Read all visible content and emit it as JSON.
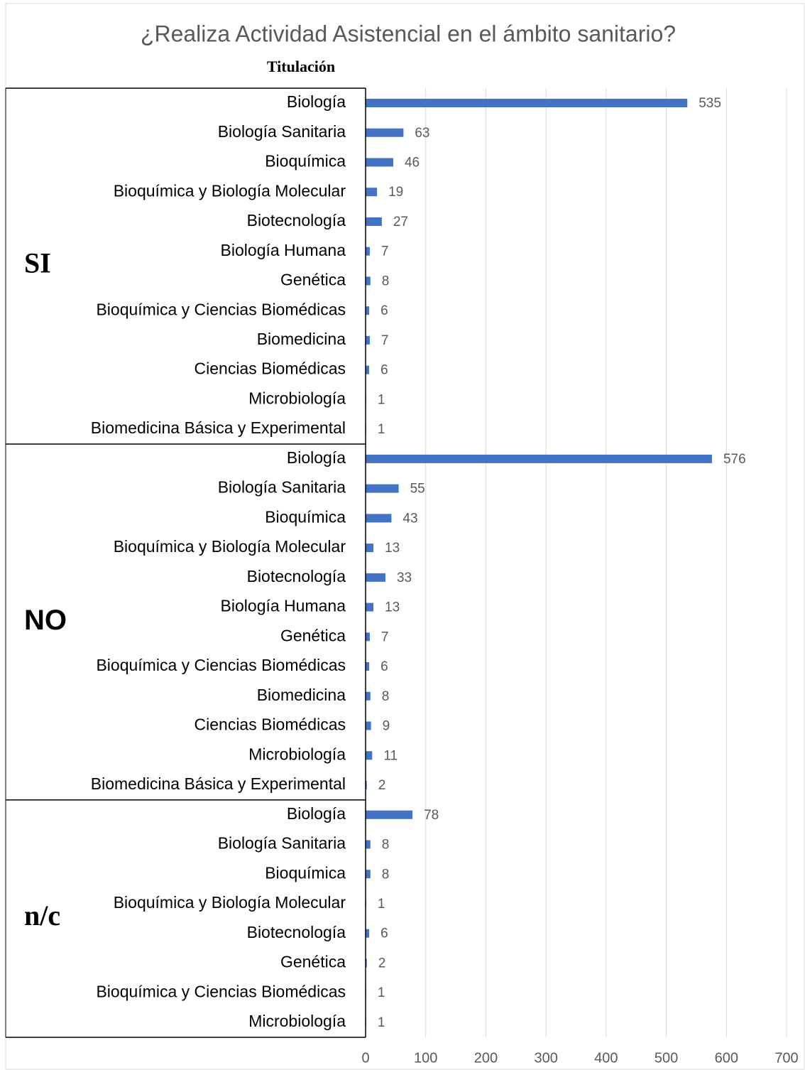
{
  "chart_data": {
    "type": "bar",
    "title": "¿Realiza Actividad Asistencial en el ámbito sanitario?",
    "subtitle": "Titulación",
    "color": "#4472c4",
    "grid": true,
    "xlim": [
      0,
      700
    ],
    "xticks": [
      0,
      100,
      200,
      300,
      400,
      500,
      600,
      700
    ],
    "groups": [
      {
        "name": "SI",
        "categories": [
          "Biología",
          "Biología Sanitaria",
          "Bioquímica",
          "Bioquímica y Biología Molecular",
          "Biotecnología",
          "Biología Humana",
          "Genética",
          "Bioquímica y Ciencias Biomédicas",
          "Biomedicina",
          "Ciencias Biomédicas",
          "Microbiología",
          "Biomedicina Básica y Experimental"
        ],
        "values": [
          535,
          63,
          46,
          19,
          27,
          7,
          8,
          6,
          7,
          6,
          1,
          1
        ]
      },
      {
        "name": "NO",
        "categories": [
          "Biología",
          "Biología Sanitaria",
          "Bioquímica",
          "Bioquímica y Biología Molecular",
          "Biotecnología",
          "Biología Humana",
          "Genética",
          "Bioquímica y Ciencias Biomédicas",
          "Biomedicina",
          "Ciencias Biomédicas",
          "Microbiología",
          "Biomedicina Básica y Experimental"
        ],
        "values": [
          576,
          55,
          43,
          13,
          33,
          13,
          7,
          6,
          8,
          9,
          11,
          2
        ]
      },
      {
        "name": "n/c",
        "categories": [
          "Biología",
          "Biología Sanitaria",
          "Bioquímica",
          "Bioquímica y Biología Molecular",
          "Biotecnología",
          "Genética",
          "Bioquímica y Ciencias Biomédicas",
          "Microbiología"
        ],
        "values": [
          78,
          8,
          8,
          1,
          6,
          2,
          1,
          1
        ]
      }
    ]
  }
}
